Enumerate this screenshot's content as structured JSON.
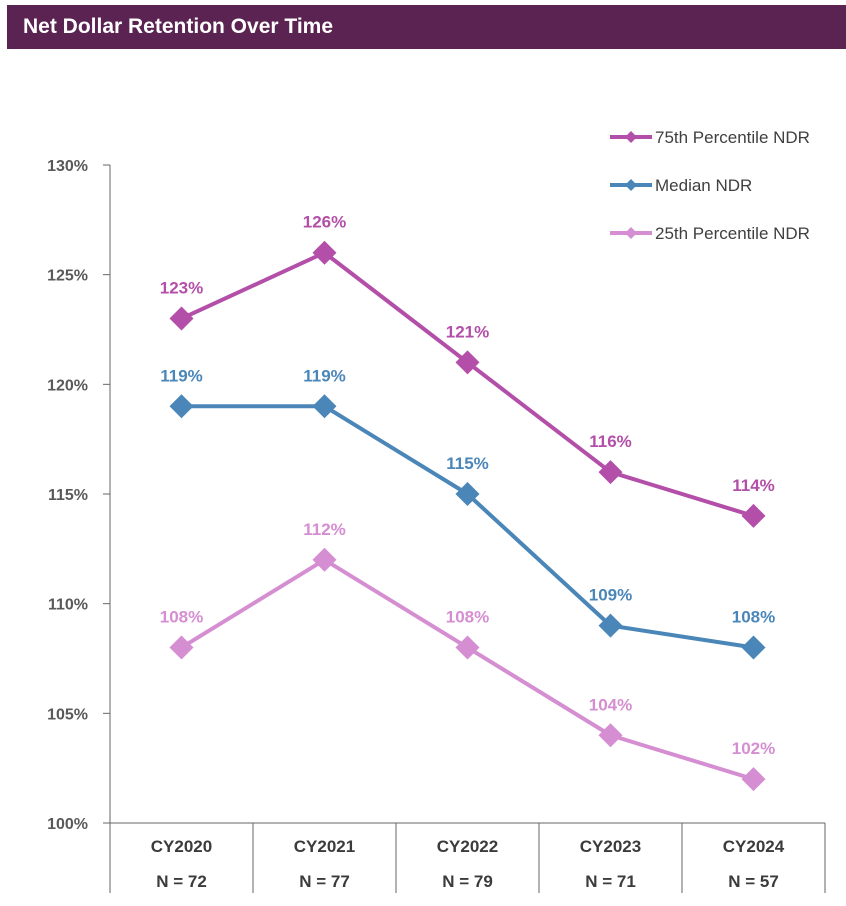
{
  "header": {
    "title": "Net Dollar Retention Over Time"
  },
  "colors": {
    "title_bg": "#5a2352",
    "p75": "#b34fa8",
    "median": "#4a86b8",
    "p25": "#d58ed1",
    "axis": "#666666",
    "tick_label": "#595959",
    "legend_text": "#404040",
    "category_text": "#3b3b3b"
  },
  "chart_data": {
    "type": "line",
    "title": "Net Dollar Retention Over Time",
    "categories": [
      "CY2020",
      "CY2021",
      "CY2022",
      "CY2023",
      "CY2024"
    ],
    "sample_sizes": [
      "N = 72",
      "N = 77",
      "N = 79",
      "N = 71",
      "N = 57"
    ],
    "ylim": [
      100,
      130
    ],
    "yticks": [
      100,
      105,
      110,
      115,
      120,
      125,
      130
    ],
    "ytick_labels": [
      "100%",
      "105%",
      "110%",
      "115%",
      "120%",
      "125%",
      "130%"
    ],
    "series": [
      {
        "key": "p75",
        "name": "75th Percentile NDR",
        "values": [
          123,
          126,
          121,
          116,
          114
        ],
        "labels": [
          "123%",
          "126%",
          "121%",
          "116%",
          "114%"
        ]
      },
      {
        "key": "median",
        "name": "Median NDR",
        "values": [
          119,
          119,
          115,
          109,
          108
        ],
        "labels": [
          "119%",
          "119%",
          "115%",
          "109%",
          "108%"
        ]
      },
      {
        "key": "p25",
        "name": "25th Percentile NDR",
        "values": [
          108,
          112,
          108,
          104,
          102
        ],
        "labels": [
          "108%",
          "112%",
          "108%",
          "104%",
          "102%"
        ]
      }
    ],
    "legend_position": "top-right",
    "grid": false
  }
}
